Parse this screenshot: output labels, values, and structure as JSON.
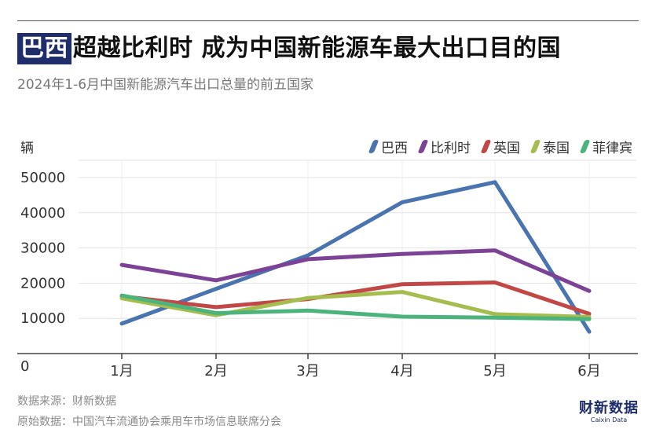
{
  "title": {
    "highlight": "巴西",
    "rest": "超越比利时 成为中国新能源车最大出口目的国"
  },
  "subtitle": "2024年1-6月中国新能源汽车出口总量的前五国家",
  "footer": {
    "source": "数据来源：财新数据",
    "origin": "原始数据：中国汽车流通协会乘用车市场信息联席分会"
  },
  "logo": {
    "cn": "财新数据",
    "en": "Caixin Data"
  },
  "chart_data": {
    "type": "line",
    "title": "巴西超越比利时 成为中国新能源车最大出口目的国",
    "subtitle": "2024年1-6月中国新能源汽车出口总量的前五国家",
    "ylabel": "辆",
    "categories": [
      "1月",
      "2月",
      "3月",
      "4月",
      "5月",
      "6月"
    ],
    "yticks": [
      0,
      10000,
      20000,
      30000,
      40000,
      50000
    ],
    "ylim": [
      0,
      50000
    ],
    "grid": true,
    "legend_position": "top-right",
    "series": [
      {
        "name": "巴西",
        "color": "#4a74b0",
        "values": [
          8500,
          18400,
          27900,
          43000,
          48700,
          6200
        ]
      },
      {
        "name": "比利时",
        "color": "#7b4296",
        "values": [
          25200,
          20800,
          26800,
          28300,
          29300,
          17800
        ]
      },
      {
        "name": "英国",
        "color": "#c24848",
        "values": [
          16300,
          13200,
          15500,
          19700,
          20200,
          11300
        ]
      },
      {
        "name": "泰国",
        "color": "#a4bd4e",
        "values": [
          15700,
          10900,
          15800,
          17500,
          11200,
          10400
        ]
      },
      {
        "name": "菲律宾",
        "color": "#4db37d",
        "values": [
          16500,
          11500,
          12200,
          10500,
          10200,
          9800
        ]
      }
    ]
  }
}
